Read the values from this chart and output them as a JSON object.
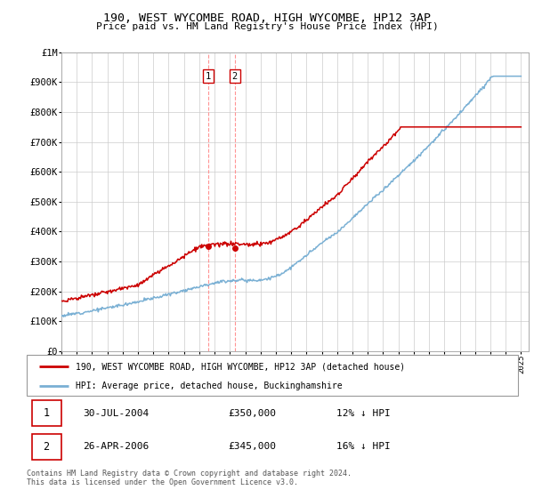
{
  "title": "190, WEST WYCOMBE ROAD, HIGH WYCOMBE, HP12 3AP",
  "subtitle": "Price paid vs. HM Land Registry's House Price Index (HPI)",
  "legend_line1": "190, WEST WYCOMBE ROAD, HIGH WYCOMBE, HP12 3AP (detached house)",
  "legend_line2": "HPI: Average price, detached house, Buckinghamshire",
  "sale1_date": "30-JUL-2004",
  "sale1_price": "£350,000",
  "sale1_hpi": "12% ↓ HPI",
  "sale2_date": "26-APR-2006",
  "sale2_price": "£345,000",
  "sale2_hpi": "16% ↓ HPI",
  "footnote": "Contains HM Land Registry data © Crown copyright and database right 2024.\nThis data is licensed under the Open Government Licence v3.0.",
  "sale1_x": 2004.58,
  "sale1_y": 350000,
  "sale2_x": 2006.32,
  "sale2_y": 345000,
  "red_color": "#cc0000",
  "blue_color": "#7ab0d4",
  "background_color": "#ffffff",
  "grid_color": "#cccccc",
  "ylim": [
    0,
    1000000
  ],
  "xlim": [
    1995,
    2025.5
  ],
  "yticks": [
    0,
    100000,
    200000,
    300000,
    400000,
    500000,
    600000,
    700000,
    800000,
    900000,
    1000000
  ],
  "ylabels": [
    "£0",
    "£100K",
    "£200K",
    "£300K",
    "£400K",
    "£500K",
    "£600K",
    "£700K",
    "£800K",
    "£900K",
    "£1M"
  ]
}
